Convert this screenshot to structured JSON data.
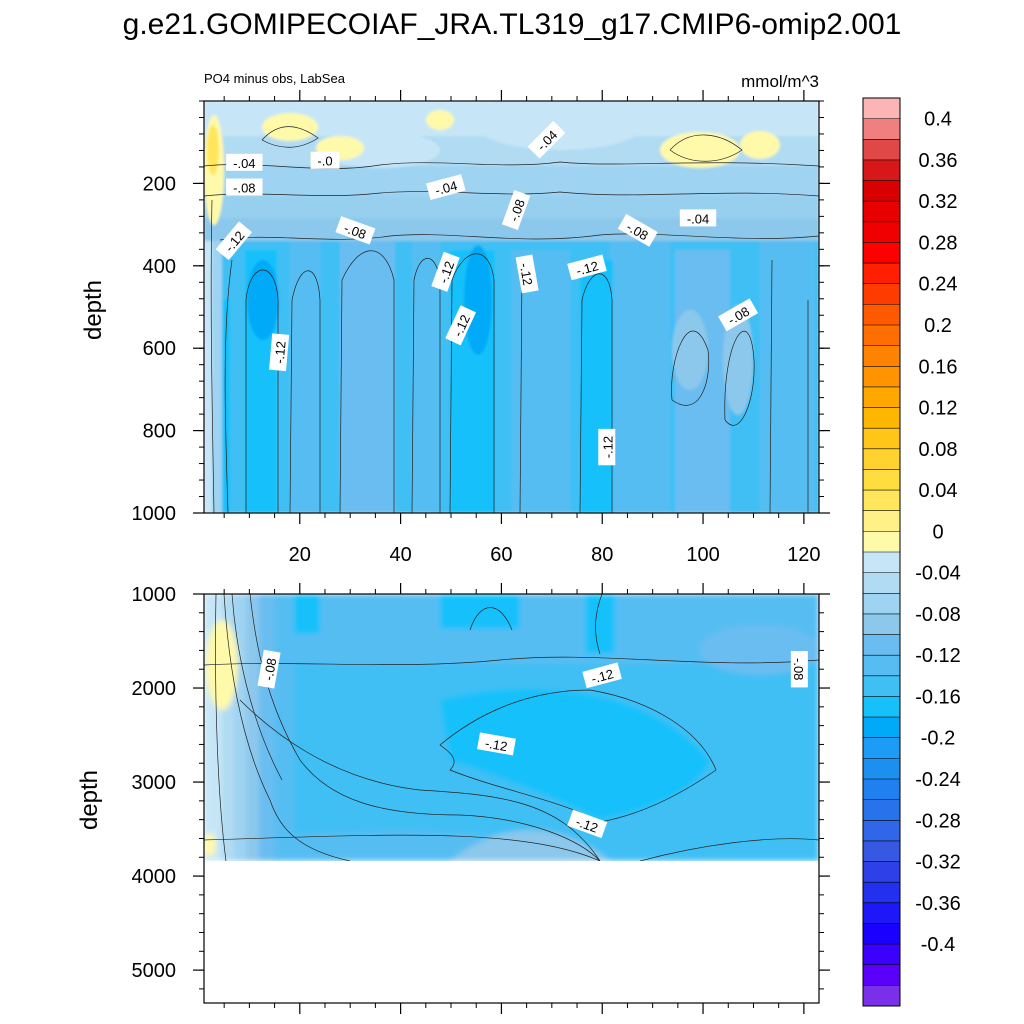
{
  "title": "g.e21.GOMIPECOIAF_JRA.TL319_g17.CMIP6-omip2.001",
  "chart_data": [
    {
      "type": "heatmap",
      "panel": "upper",
      "subtitle_left": "PO4 minus obs, LabSea",
      "subtitle_right": "mmol/m^3",
      "ylabel": "depth",
      "xlabel": "",
      "xlim": [
        1,
        123
      ],
      "ylim": [
        1000,
        0
      ],
      "xticks": [
        20,
        40,
        60,
        80,
        100,
        120
      ],
      "yticks": [
        200,
        400,
        600,
        800,
        1000
      ],
      "contour_labels": [
        {
          "text": "-.04",
          "x": 9,
          "depth": 150,
          "angle": 0
        },
        {
          "text": "-.0",
          "x": 25,
          "depth": 145,
          "angle": 0
        },
        {
          "text": "-.04",
          "x": 69,
          "depth": 95,
          "angle": -45
        },
        {
          "text": "-.08",
          "x": 9,
          "depth": 210,
          "angle": 0
        },
        {
          "text": "-.04",
          "x": 49,
          "depth": 210,
          "angle": -15
        },
        {
          "text": "-.08",
          "x": 63,
          "depth": 265,
          "angle": -70
        },
        {
          "text": "-.04",
          "x": 99,
          "depth": 285,
          "angle": 0
        },
        {
          "text": "-.12",
          "x": 7,
          "depth": 340,
          "angle": -50
        },
        {
          "text": "-.08",
          "x": 31,
          "depth": 315,
          "angle": 20
        },
        {
          "text": "-.08",
          "x": 87,
          "depth": 315,
          "angle": 30
        },
        {
          "text": "-.12",
          "x": 49,
          "depth": 415,
          "angle": -70
        },
        {
          "text": "-.12",
          "x": 65,
          "depth": 420,
          "angle": 80
        },
        {
          "text": "-.12",
          "x": 77,
          "depth": 405,
          "angle": -15
        },
        {
          "text": "-.08",
          "x": 107,
          "depth": 520,
          "angle": -30
        },
        {
          "text": "-.12",
          "x": 52,
          "depth": 545,
          "angle": -65
        },
        {
          "text": "-.12",
          "x": 16,
          "depth": 610,
          "angle": -85
        },
        {
          "text": "-.12",
          "x": 81,
          "depth": 840,
          "angle": -90
        }
      ]
    },
    {
      "type": "heatmap",
      "panel": "lower",
      "ylabel": "depth",
      "xlabel": "",
      "xlim": [
        1,
        123
      ],
      "ylim": [
        5350,
        1000
      ],
      "xticks": [
        20,
        40,
        60,
        80,
        100,
        120
      ],
      "yticks": [
        1000,
        2000,
        3000,
        4000,
        5000
      ],
      "no_data_below_depth": 3880,
      "contour_labels": [
        {
          "text": "-.08",
          "x": 14,
          "depth": 1800,
          "angle": -80
        },
        {
          "text": "-.12",
          "x": 80,
          "depth": 1870,
          "angle": -15
        },
        {
          "text": "-.08",
          "x": 119,
          "depth": 1800,
          "angle": 90
        },
        {
          "text": "-.12",
          "x": 59,
          "depth": 2600,
          "angle": 10
        },
        {
          "text": "-.12",
          "x": 77,
          "depth": 3450,
          "angle": 20
        }
      ]
    }
  ],
  "colorbar": {
    "levels": [
      "0.4",
      "0.36",
      "0.32",
      "0.28",
      "0.24",
      "0.2",
      "0.16",
      "0.12",
      "0.08",
      "0.04",
      "0",
      "-0.04",
      "-0.08",
      "-0.12",
      "-0.16",
      "-0.2",
      "-0.24",
      "-0.28",
      "-0.32",
      "-0.36",
      "-0.4"
    ],
    "colors": [
      "#fbb5b5",
      "#f07f7f",
      "#e04848",
      "#d81818",
      "#d80000",
      "#e80000",
      "#f00000",
      "#ff0000",
      "#ff2000",
      "#ff3c00",
      "#ff5a00",
      "#ff6e00",
      "#ff8200",
      "#ff9400",
      "#ffa800",
      "#ffb600",
      "#ffc618",
      "#ffd230",
      "#ffdc40",
      "#ffe65a",
      "#fff088",
      "#fff9aa",
      "#c6e6f7",
      "#b1dbf2",
      "#9fd3f2",
      "#8cc8ec",
      "#6bbdf1",
      "#56bdf2",
      "#3fbff4",
      "#16c1fb",
      "#00aaf8",
      "#1c9cf5",
      "#1c8ff0",
      "#2080f0",
      "#2873ec",
      "#3066e8",
      "#3658e2",
      "#2e40e8",
      "#2430f0",
      "#1e18f8",
      "#1a00ff",
      "#3c00ff",
      "#5a00f8",
      "#7a30e8"
    ]
  }
}
